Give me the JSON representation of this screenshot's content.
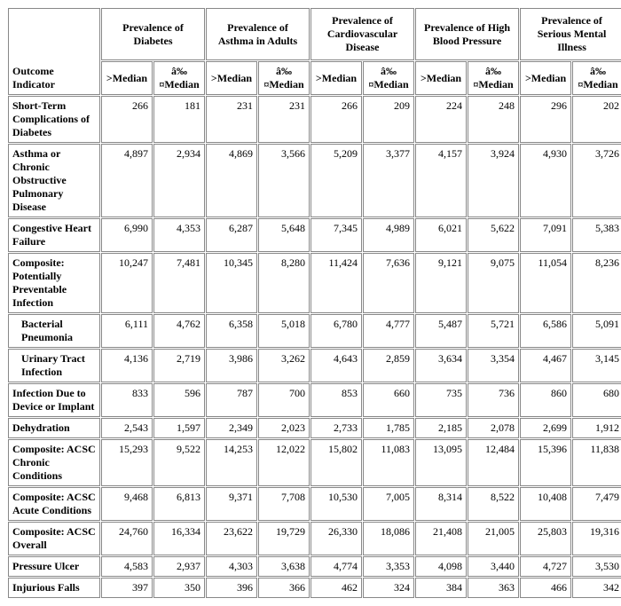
{
  "corner_label": "Outcome Indicator",
  "sub_gt": ">Median",
  "sub_le": "â‰¤Median",
  "groups": [
    "Prevalence of Diabetes",
    "Prevalence of Asthma in Adults",
    "Prevalence of Cardiovascular Disease",
    "Prevalence of High Blood Pressure",
    "Prevalence of Serious Mental Illness"
  ],
  "rows": [
    {
      "label": "Short-Term Complications of Diabetes",
      "indent": false,
      "v": [
        "266",
        "181",
        "231",
        "231",
        "266",
        "209",
        "224",
        "248",
        "296",
        "202"
      ]
    },
    {
      "label": "Asthma or Chronic Obstructive Pulmonary Disease",
      "indent": false,
      "v": [
        "4,897",
        "2,934",
        "4,869",
        "3,566",
        "5,209",
        "3,377",
        "4,157",
        "3,924",
        "4,930",
        "3,726"
      ]
    },
    {
      "label": "Congestive Heart Failure",
      "indent": false,
      "v": [
        "6,990",
        "4,353",
        "6,287",
        "5,648",
        "7,345",
        "4,989",
        "6,021",
        "5,622",
        "7,091",
        "5,383"
      ]
    },
    {
      "label": "Composite: Potentially Preventable Infection",
      "indent": false,
      "v": [
        "10,247",
        "7,481",
        "10,345",
        "8,280",
        "11,424",
        "7,636",
        "9,121",
        "9,075",
        "11,054",
        "8,236"
      ]
    },
    {
      "label": "Bacterial Pneumonia",
      "indent": true,
      "v": [
        "6,111",
        "4,762",
        "6,358",
        "5,018",
        "6,780",
        "4,777",
        "5,487",
        "5,721",
        "6,586",
        "5,091"
      ]
    },
    {
      "label": "Urinary Tract Infection",
      "indent": true,
      "v": [
        "4,136",
        "2,719",
        "3,986",
        "3,262",
        "4,643",
        "2,859",
        "3,634",
        "3,354",
        "4,467",
        "3,145"
      ]
    },
    {
      "label": "Infection Due to Device or Implant",
      "indent": false,
      "v": [
        "833",
        "596",
        "787",
        "700",
        "853",
        "660",
        "735",
        "736",
        "860",
        "680"
      ]
    },
    {
      "label": "Dehydration",
      "indent": false,
      "v": [
        "2,543",
        "1,597",
        "2,349",
        "2,023",
        "2,733",
        "1,785",
        "2,185",
        "2,078",
        "2,699",
        "1,912"
      ]
    },
    {
      "label": "Composite: ACSC Chronic Conditions",
      "indent": false,
      "v": [
        "15,293",
        "9,522",
        "14,253",
        "12,022",
        "15,802",
        "11,083",
        "13,095",
        "12,484",
        "15,396",
        "11,838"
      ]
    },
    {
      "label": "Composite: ACSC Acute Conditions",
      "indent": false,
      "v": [
        "9,468",
        "6,813",
        "9,371",
        "7,708",
        "10,530",
        "7,005",
        "8,314",
        "8,522",
        "10,408",
        "7,479"
      ]
    },
    {
      "label": "Composite: ACSC Overall",
      "indent": false,
      "v": [
        "24,760",
        "16,334",
        "23,622",
        "19,729",
        "26,330",
        "18,086",
        "21,408",
        "21,005",
        "25,803",
        "19,316"
      ]
    },
    {
      "label": "Pressure Ulcer",
      "indent": false,
      "v": [
        "4,583",
        "2,937",
        "4,303",
        "3,638",
        "4,774",
        "3,353",
        "4,098",
        "3,440",
        "4,727",
        "3,530"
      ]
    },
    {
      "label": "Injurious Falls",
      "indent": false,
      "v": [
        "397",
        "350",
        "396",
        "366",
        "462",
        "324",
        "384",
        "363",
        "466",
        "342"
      ]
    }
  ],
  "style": {
    "font_family": "Times New Roman",
    "font_size_pt": 9,
    "cell_number_align": "right",
    "border_color": "#888888",
    "background_color": "#ffffff",
    "text_color": "#000000"
  }
}
